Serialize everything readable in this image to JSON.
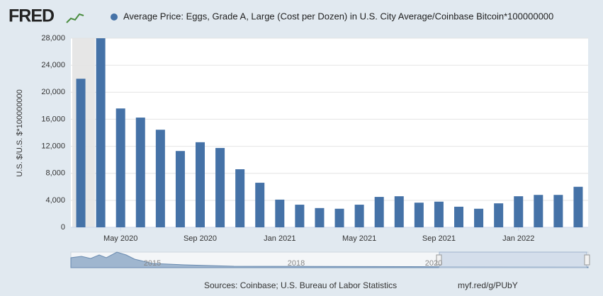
{
  "logo": "FRED",
  "chart_data": {
    "type": "bar",
    "title": "Average Price: Eggs, Grade A, Large (Cost per Dozen) in U.S. City Average/Coinbase Bitcoin*100000000",
    "y_label": "U.S. $/U.S. $*100000000",
    "categories": [
      null,
      null,
      "May 2020",
      null,
      null,
      null,
      "Sep 2020",
      null,
      null,
      null,
      "Jan 2021",
      null,
      null,
      null,
      "May 2021",
      null,
      null,
      null,
      "Sep 2021",
      null,
      null,
      null,
      "Jan 2022",
      null,
      null,
      null
    ],
    "values": [
      22000,
      28000,
      17600,
      16250,
      14450,
      11300,
      12600,
      11750,
      8600,
      6600,
      4100,
      3350,
      2850,
      2750,
      3350,
      4500,
      4600,
      3650,
      3800,
      3050,
      2750,
      3550,
      4600,
      4800,
      4800,
      6000
    ],
    "color": "#4572a7",
    "ylim": [
      0,
      28000
    ],
    "yticks": [
      0,
      {
        "value": 4000,
        "label": "4,000"
      },
      {
        "value": 8000,
        "label": "8,000"
      },
      {
        "value": 12000,
        "label": "12,000"
      },
      {
        "value": 16000,
        "label": "16,000"
      },
      {
        "value": 20000,
        "label": "20,000"
      },
      {
        "value": 24000,
        "label": "24,000"
      },
      {
        "value": 28000,
        "label": "28,000"
      }
    ],
    "grid": true,
    "navigator_labels": [
      "2015",
      "2018",
      "2020"
    ]
  },
  "footer": {
    "sources": "Sources: Coinbase; U.S. Bureau of Labor Statistics",
    "link": "myf.red/g/PUbY"
  }
}
